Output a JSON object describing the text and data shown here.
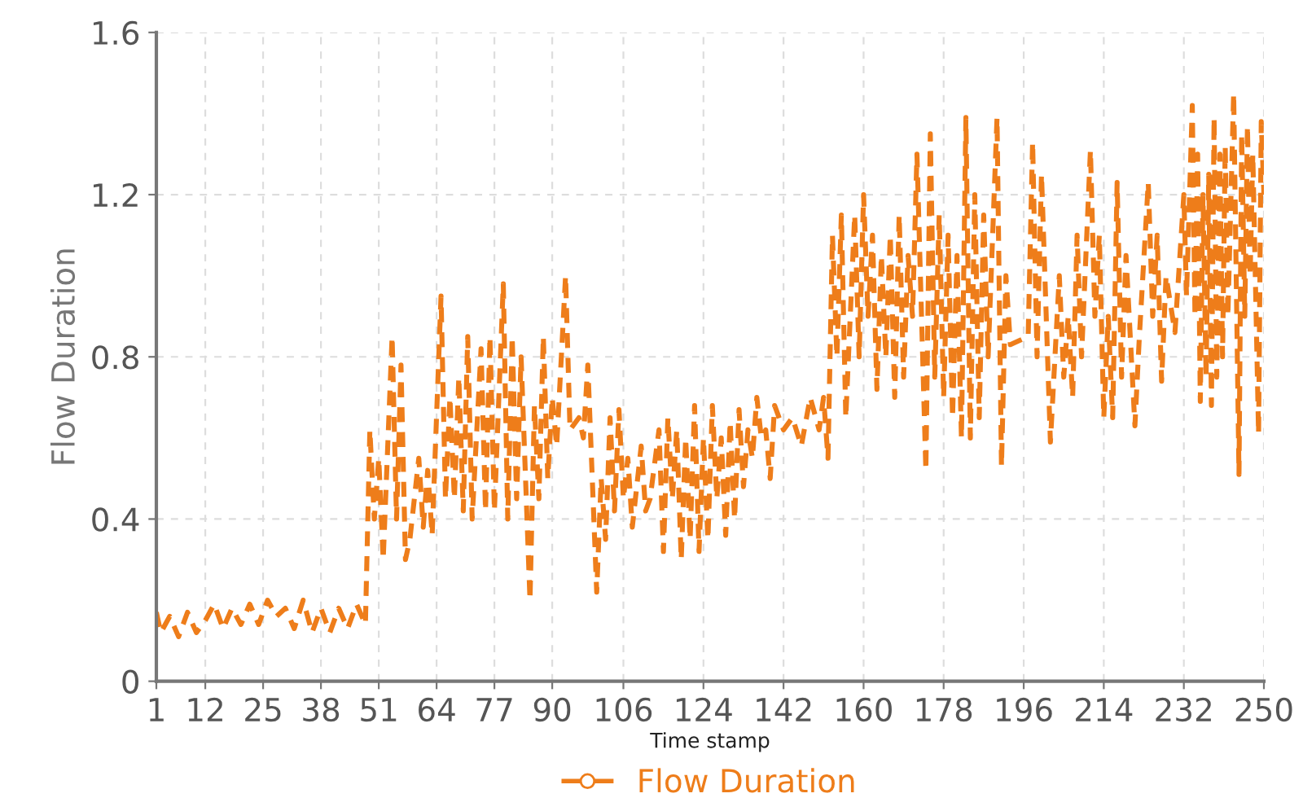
{
  "chart_data": {
    "type": "line",
    "xlabel": "Time stamp",
    "ylabel": "Flow Duration",
    "xlim": [
      1,
      250
    ],
    "xticks": [
      1,
      12,
      25,
      38,
      51,
      64,
      77,
      90,
      106,
      124,
      142,
      160,
      178,
      196,
      214,
      232,
      250
    ],
    "ylim": [
      0,
      1.6
    ],
    "yticks": [
      0,
      0.4,
      0.8,
      1.2,
      1.6
    ],
    "grid": true,
    "legend": "bottom",
    "line_style": "dashed",
    "series": [
      {
        "name": "Flow Duration",
        "color": "#ee7d1a",
        "x": [
          1,
          2,
          4,
          6,
          8,
          10,
          12,
          14,
          16,
          18,
          20,
          22,
          24,
          26,
          28,
          30,
          32,
          34,
          36,
          38,
          40,
          42,
          44,
          46,
          48,
          49,
          50,
          51,
          52,
          54,
          55,
          56,
          57,
          58,
          60,
          61,
          62,
          63,
          65,
          66,
          67,
          68,
          69,
          70,
          71,
          72,
          74,
          75,
          76,
          77,
          79,
          80,
          81,
          82,
          83,
          85,
          86,
          87,
          88,
          89,
          90,
          91,
          93,
          94,
          96,
          97,
          98,
          100,
          101,
          102,
          103,
          104,
          105,
          106,
          107,
          108,
          110,
          111,
          112,
          114,
          115,
          116,
          117,
          118,
          119,
          120,
          121,
          122,
          123,
          124,
          125,
          126,
          127,
          128,
          129,
          130,
          131,
          132,
          133,
          134,
          135,
          136,
          137,
          138,
          139,
          140,
          142,
          144,
          146,
          148,
          150,
          151,
          152,
          153,
          154,
          155,
          156,
          157,
          158,
          159,
          160,
          161,
          162,
          163,
          164,
          165,
          166,
          167,
          168,
          169,
          170,
          171,
          172,
          174,
          175,
          176,
          177,
          178,
          179,
          180,
          181,
          182,
          183,
          184,
          185,
          186,
          187,
          188,
          190,
          191,
          192,
          193,
          195,
          197,
          198,
          199,
          200,
          202,
          204,
          205,
          206,
          207,
          208,
          209,
          211,
          212,
          213,
          214,
          215,
          216,
          217,
          218,
          219,
          221,
          222,
          224,
          225,
          226,
          227,
          228,
          230,
          232,
          232.6,
          233.9,
          234.5,
          235.1,
          235.7,
          236.3,
          237.0,
          237.6,
          238.2,
          238.8,
          239.4,
          240.1,
          240.7,
          241.3,
          241.9,
          243.2,
          244.4,
          245.0,
          245.7,
          246.3,
          246.9,
          247.5,
          248.8,
          249.4,
          250
        ],
        "values": [
          0.17,
          0.12,
          0.16,
          0.11,
          0.17,
          0.12,
          0.15,
          0.19,
          0.13,
          0.18,
          0.14,
          0.19,
          0.14,
          0.2,
          0.16,
          0.18,
          0.13,
          0.2,
          0.12,
          0.18,
          0.12,
          0.18,
          0.13,
          0.19,
          0.14,
          0.62,
          0.4,
          0.55,
          0.3,
          0.85,
          0.4,
          0.78,
          0.3,
          0.35,
          0.55,
          0.38,
          0.52,
          0.36,
          0.95,
          0.45,
          0.7,
          0.45,
          0.75,
          0.42,
          0.85,
          0.4,
          0.82,
          0.42,
          0.85,
          0.42,
          0.98,
          0.4,
          0.85,
          0.45,
          0.8,
          0.2,
          0.68,
          0.45,
          0.85,
          0.5,
          0.7,
          0.58,
          1.0,
          0.62,
          0.65,
          0.6,
          0.78,
          0.22,
          0.5,
          0.35,
          0.65,
          0.42,
          0.67,
          0.45,
          0.55,
          0.38,
          0.58,
          0.42,
          0.45,
          0.62,
          0.32,
          0.65,
          0.45,
          0.62,
          0.3,
          0.6,
          0.35,
          0.68,
          0.32,
          0.6,
          0.35,
          0.68,
          0.45,
          0.6,
          0.36,
          0.64,
          0.4,
          0.67,
          0.48,
          0.62,
          0.55,
          0.7,
          0.6,
          0.62,
          0.5,
          0.68,
          0.62,
          0.65,
          0.58,
          0.7,
          0.62,
          0.7,
          0.55,
          1.1,
          0.8,
          1.15,
          0.65,
          0.9,
          1.15,
          0.8,
          1.2,
          0.9,
          1.1,
          0.72,
          1.05,
          0.8,
          1.1,
          0.7,
          1.15,
          0.75,
          1.05,
          0.9,
          1.3,
          0.52,
          1.35,
          0.75,
          1.15,
          0.7,
          1.1,
          0.65,
          1.05,
          0.6,
          1.39,
          0.6,
          1.2,
          0.65,
          1.15,
          0.8,
          1.39,
          0.53,
          1.0,
          0.83,
          0.84,
          0.85,
          1.33,
          0.8,
          1.25,
          0.59,
          1.0,
          0.75,
          0.9,
          0.7,
          1.1,
          0.8,
          1.31,
          0.9,
          1.1,
          0.65,
          0.9,
          0.65,
          1.23,
          0.75,
          1.05,
          0.63,
          0.85,
          1.23,
          0.9,
          1.1,
          0.74,
          1.0,
          0.86,
          1.2,
          0.95,
          1.42,
          0.9,
          1.3,
          0.69,
          1.2,
          0.75,
          1.25,
          0.68,
          1.39,
          0.75,
          1.3,
          0.8,
          1.32,
          0.9,
          1.45,
          0.51,
          1.35,
          0.9,
          1.37,
          1.0,
          1.3,
          0.61,
          1.38,
          1.2
        ]
      }
    ]
  }
}
